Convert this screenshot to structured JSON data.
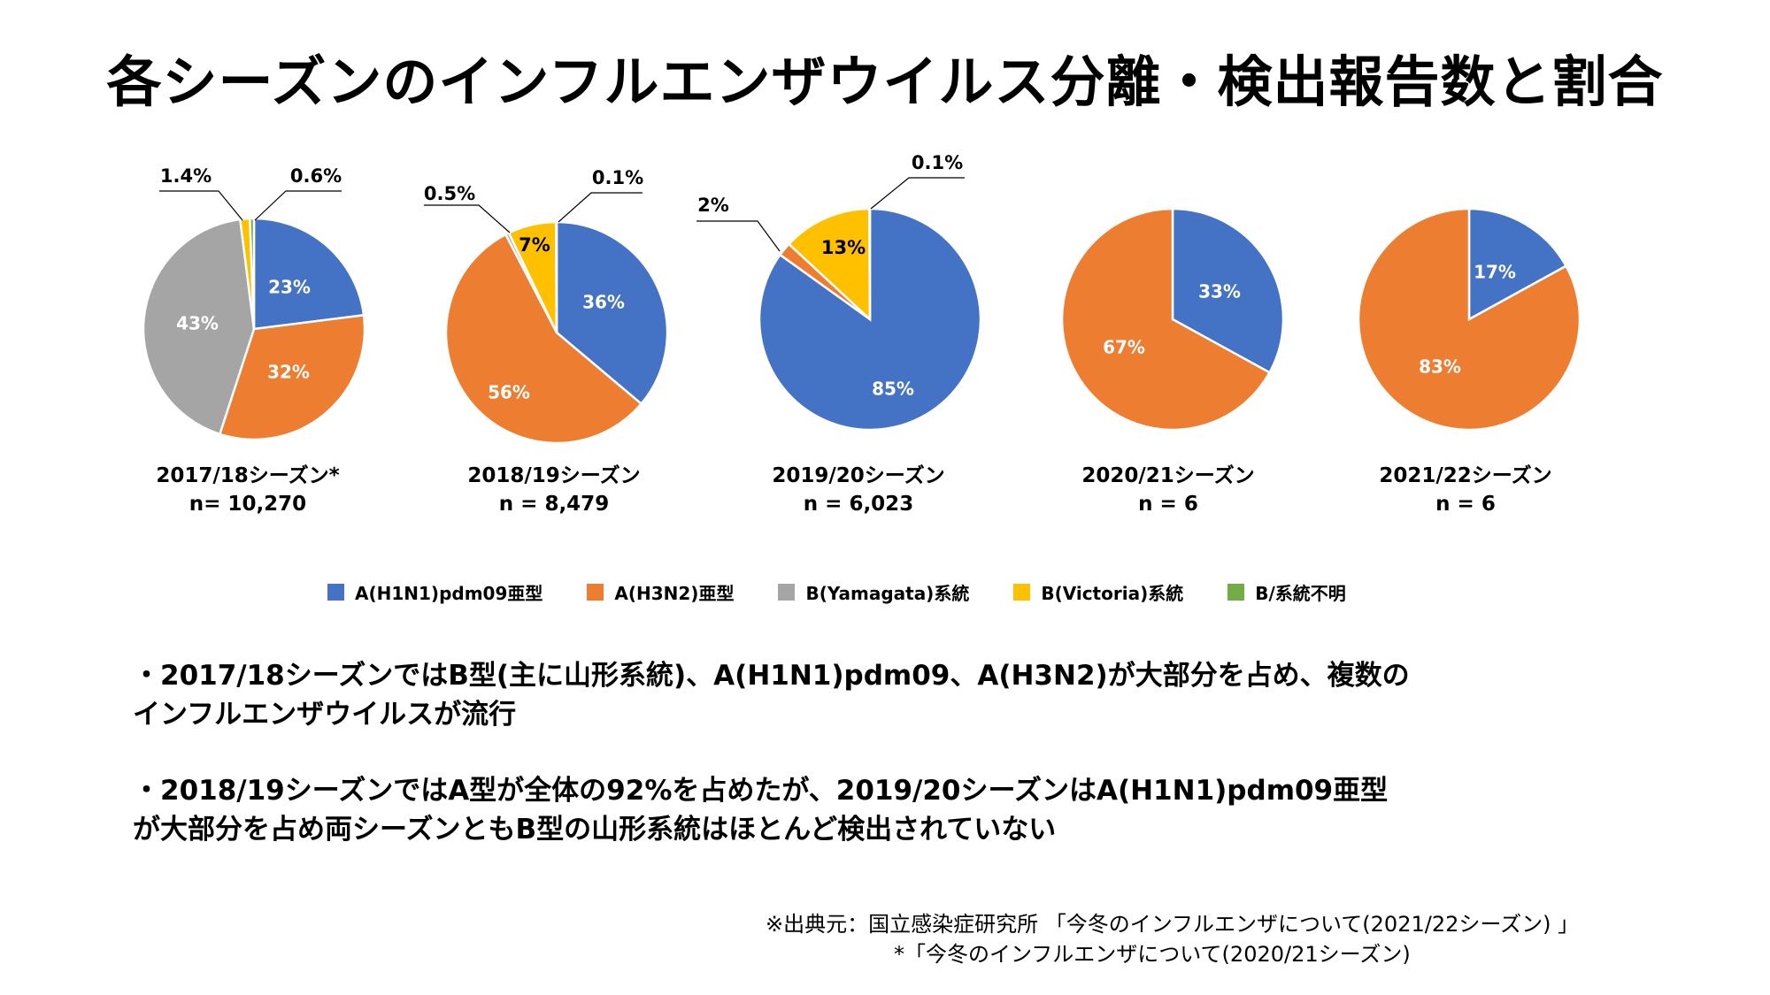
{
  "title": "各シーズンのインフルエンザウイルス分離・検出報告数と割合",
  "colors": {
    "h1n1": "#4472C4",
    "h3n2": "#ED7D31",
    "yamagata": "#A5A5A5",
    "victoria": "#FFC000",
    "unknown": "#70AD47"
  },
  "legend": [
    {
      "label": "A(H1N1)pdm09亜型",
      "color": "#4472C4"
    },
    {
      "label": "A(H3N2)亜型",
      "color": "#ED7D31"
    },
    {
      "label": "B(Yamagata)系統",
      "color": "#A5A5A5"
    },
    {
      "label": "B(Victoria)系統",
      "color": "#FFC000"
    },
    {
      "label": "B/系統不明",
      "color": "#70AD47"
    }
  ],
  "chart_data": [
    {
      "type": "pie",
      "season": "2017/18シーズン*",
      "n": "n= 10,270",
      "slices": [
        {
          "category": "A(H1N1)pdm09亜型",
          "value": 23,
          "label": "23%"
        },
        {
          "category": "A(H3N2)亜型",
          "value": 32,
          "label": "32%"
        },
        {
          "category": "B(Yamagata)系統",
          "value": 43,
          "label": "43%"
        },
        {
          "category": "B(Victoria)系統",
          "value": 1.4,
          "label": "1.4%"
        },
        {
          "category": "B/系統不明",
          "value": 0.6,
          "label": "0.6%"
        }
      ]
    },
    {
      "type": "pie",
      "season": "2018/19シーズン",
      "n": "n = 8,479",
      "slices": [
        {
          "category": "A(H1N1)pdm09亜型",
          "value": 36,
          "label": "36%"
        },
        {
          "category": "A(H3N2)亜型",
          "value": 56,
          "label": "56%"
        },
        {
          "category": "B(Yamagata)系統",
          "value": 0.5,
          "label": "0.5%"
        },
        {
          "category": "B(Victoria)系統",
          "value": 7,
          "label": "7%"
        },
        {
          "category": "B/系統不明",
          "value": 0.1,
          "label": "0.1%"
        }
      ]
    },
    {
      "type": "pie",
      "season": "2019/20シーズン",
      "n": "n = 6,023",
      "slices": [
        {
          "category": "A(H1N1)pdm09亜型",
          "value": 85,
          "label": "85%"
        },
        {
          "category": "A(H3N2)亜型",
          "value": 2,
          "label": "2%"
        },
        {
          "category": "B(Victoria)系統",
          "value": 13,
          "label": "13%"
        },
        {
          "category": "B/系統不明",
          "value": 0.1,
          "label": "0.1%"
        }
      ]
    },
    {
      "type": "pie",
      "season": "2020/21シーズン",
      "n": "n = 6",
      "slices": [
        {
          "category": "A(H1N1)pdm09亜型",
          "value": 33,
          "label": "33%"
        },
        {
          "category": "A(H3N2)亜型",
          "value": 67,
          "label": "67%"
        }
      ]
    },
    {
      "type": "pie",
      "season": "2021/22シーズン",
      "n": "n = 6",
      "slices": [
        {
          "category": "A(H1N1)pdm09亜型",
          "value": 17,
          "label": "17%"
        },
        {
          "category": "A(H3N2)亜型",
          "value": 83,
          "label": "83%"
        }
      ]
    }
  ],
  "bullets": [
    {
      "line1": "・2017/18シーズンではB型(主に山形系統)、A(H1N1)pdm09、A(H3N2)が大部分を占め、複数の",
      "line2": "インフルエンザウイルスが流行"
    },
    {
      "line1": "・2018/19シーズンではA型が全体の92%を占めたが、2019/20シーズンはA(H1N1)pdm09亜型",
      "line2": "が大部分を占め両シーズンともB型の山形系統はほとんど検出されていない"
    }
  ],
  "source": {
    "line1": "※出典元：国立感染症研究所 「今冬のインフルエンザについて(2021/22シーズン) 」",
    "line2": "*「今冬のインフルエンザについて(2020/21シーズン)"
  }
}
